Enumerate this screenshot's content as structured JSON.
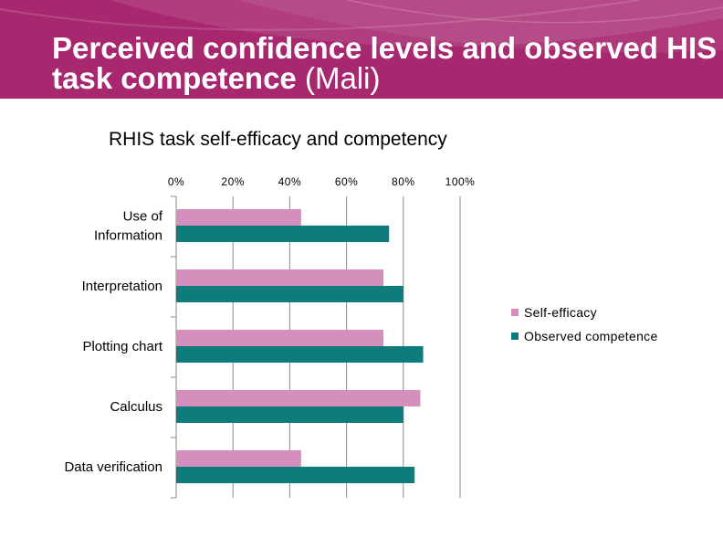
{
  "slide": {
    "title_bold": "Perceived confidence levels and observed HIS task competence",
    "title_light": "(Mali)"
  },
  "colors": {
    "banner": "#a8286f",
    "self_efficacy": "#d48fbd",
    "observed_competence": "#0f7b7b"
  },
  "chart_data": {
    "type": "bar",
    "orientation": "horizontal",
    "title": "RHIS task self-efficacy and competency",
    "categories": [
      "Use of Information",
      "Interpretation",
      "Plotting chart",
      "Calculus",
      "Data verification"
    ],
    "category_lines": [
      [
        "Use of",
        "Information"
      ],
      [
        "Interpretation"
      ],
      [
        "Plotting chart"
      ],
      [
        "Calculus"
      ],
      [
        "Data verification"
      ]
    ],
    "series": [
      {
        "name": "Self-efficacy",
        "values": [
          44,
          73,
          73,
          86,
          44
        ]
      },
      {
        "name": "Observed competence",
        "values": [
          75,
          80,
          87,
          80,
          84
        ]
      }
    ],
    "xlim": [
      0,
      100
    ],
    "x_ticks": [
      "0%",
      "20%",
      "40%",
      "60%",
      "80%",
      "100%"
    ],
    "grid": true,
    "legend_position": "right"
  }
}
